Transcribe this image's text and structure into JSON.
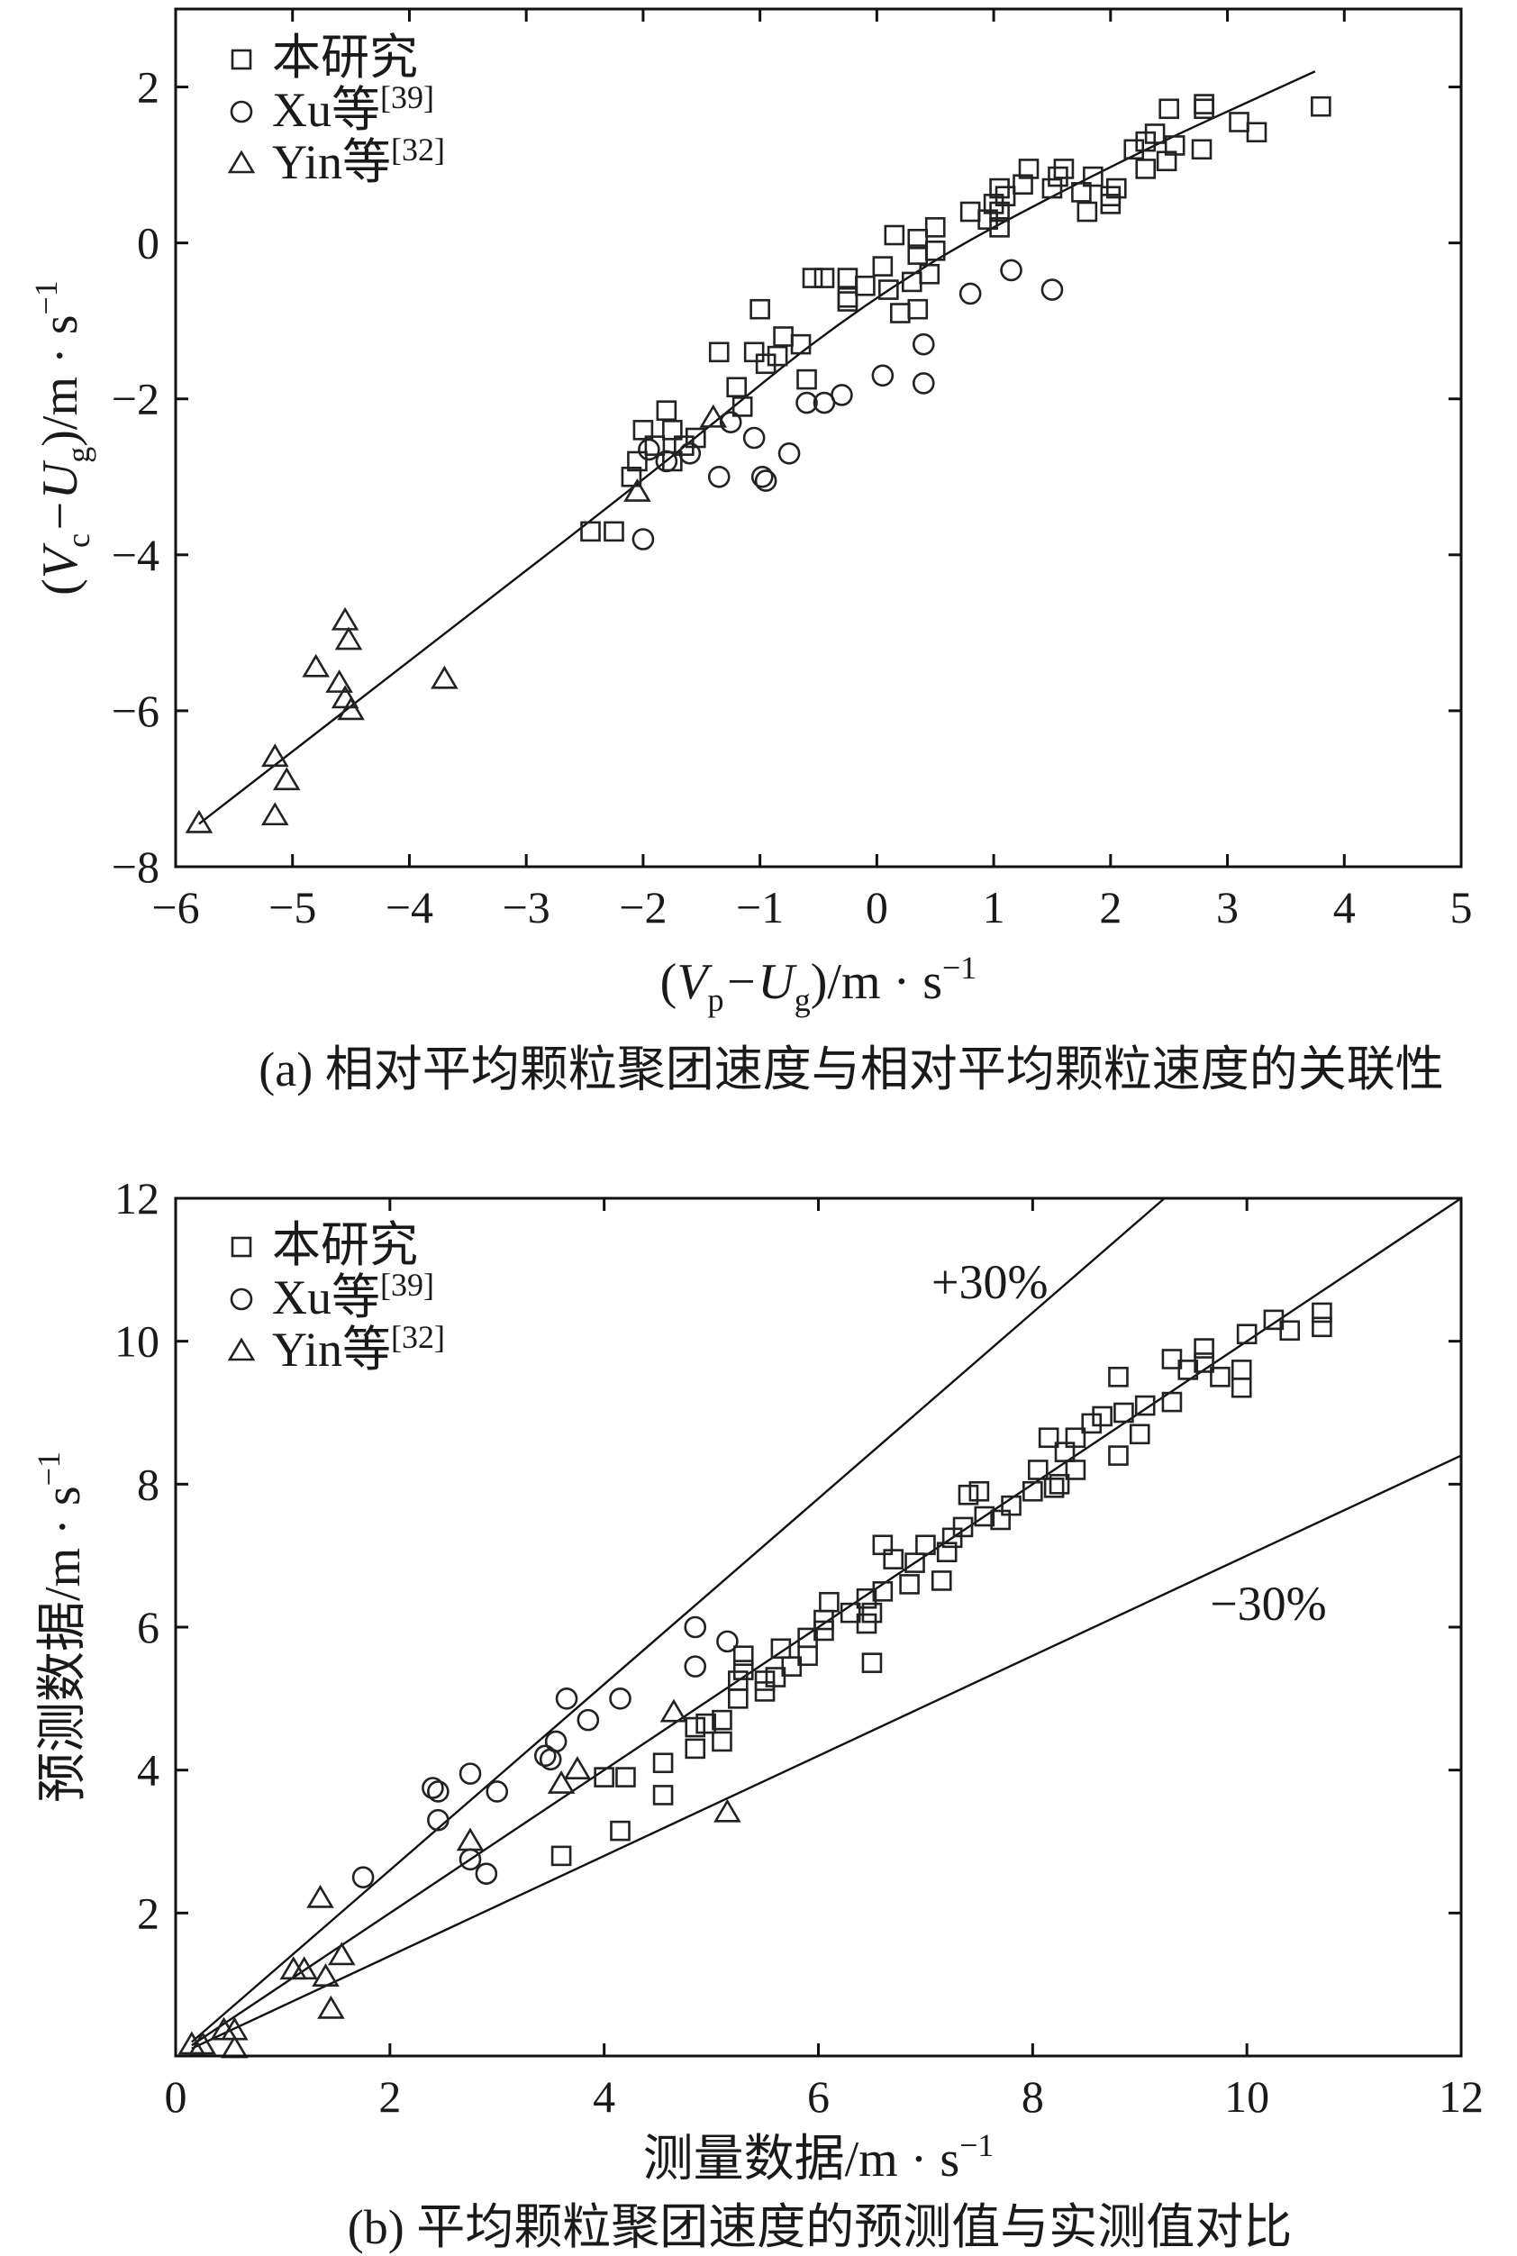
{
  "chart_data": [
    {
      "type": "scatter",
      "panel": "a",
      "caption": "(a) 相对平均颗粒聚团速度与相对平均颗粒速度的关联性",
      "xlabel": {
        "open": "(",
        "var": "V",
        "sub": "p",
        "mid": "−U",
        "sub2": "g",
        "close": ")/m · s",
        "sup": "−1"
      },
      "ylabel": {
        "open": "(",
        "var": "V",
        "sub": "c",
        "mid": "−U",
        "sub2": "g",
        "close": ")/m · s",
        "sup": "−1"
      },
      "xlim": [
        -6,
        5
      ],
      "ylim": [
        -8,
        3
      ],
      "xticks": [
        "−6",
        "−5",
        "−4",
        "−3",
        "−2",
        "−1",
        "0",
        "1",
        "2",
        "3",
        "4",
        "5"
      ],
      "yticks": [
        "−8",
        "−6",
        "−4",
        "−2",
        "0",
        "2"
      ],
      "legend_position": "top-left",
      "series": [
        {
          "name": "本研究",
          "marker": "square",
          "points": [
            [
              3.8,
              1.75
            ],
            [
              3.25,
              1.42
            ],
            [
              3.1,
              1.55
            ],
            [
              2.8,
              1.78
            ],
            [
              2.8,
              1.72
            ],
            [
              2.78,
              1.2
            ],
            [
              2.55,
              1.25
            ],
            [
              2.5,
              1.72
            ],
            [
              2.48,
              1.05
            ],
            [
              2.38,
              1.4
            ],
            [
              2.3,
              1.3
            ],
            [
              2.2,
              1.2
            ],
            [
              2.3,
              0.95
            ],
            [
              2.05,
              0.7
            ],
            [
              2.0,
              0.5
            ],
            [
              2.0,
              0.6
            ],
            [
              1.8,
              0.4
            ],
            [
              1.85,
              0.85
            ],
            [
              1.75,
              0.65
            ],
            [
              1.6,
              0.95
            ],
            [
              1.55,
              0.85
            ],
            [
              1.5,
              0.7
            ],
            [
              1.3,
              0.95
            ],
            [
              1.25,
              0.75
            ],
            [
              1.1,
              0.6
            ],
            [
              1.05,
              0.7
            ],
            [
              1.0,
              0.5
            ],
            [
              1.05,
              0.4
            ],
            [
              1.05,
              0.2
            ],
            [
              0.95,
              0.3
            ],
            [
              0.8,
              0.4
            ],
            [
              0.5,
              0.2
            ],
            [
              0.5,
              -0.1
            ],
            [
              0.45,
              -0.4
            ],
            [
              0.35,
              0.05
            ],
            [
              0.35,
              -0.15
            ],
            [
              0.3,
              -0.5
            ],
            [
              0.35,
              -0.85
            ],
            [
              0.2,
              -0.9
            ],
            [
              0.15,
              0.1
            ],
            [
              0.1,
              -0.6
            ],
            [
              0.05,
              -0.3
            ],
            [
              -0.1,
              -0.55
            ],
            [
              -0.25,
              -0.45
            ],
            [
              -0.25,
              -0.7
            ],
            [
              -0.25,
              -0.75
            ],
            [
              -0.45,
              -0.45
            ],
            [
              -0.55,
              -0.45
            ],
            [
              -0.65,
              -1.3
            ],
            [
              -0.6,
              -1.75
            ],
            [
              -0.8,
              -1.2
            ],
            [
              -0.85,
              -1.45
            ],
            [
              -0.95,
              -1.55
            ],
            [
              -1.0,
              -0.85
            ],
            [
              -1.05,
              -1.4
            ],
            [
              -1.15,
              -2.1
            ],
            [
              -1.2,
              -1.85
            ],
            [
              -1.35,
              -1.4
            ],
            [
              -1.55,
              -2.5
            ],
            [
              -1.65,
              -2.6
            ],
            [
              -1.75,
              -2.4
            ],
            [
              -1.75,
              -2.8
            ],
            [
              -1.8,
              -2.15
            ],
            [
              -1.9,
              -2.6
            ],
            [
              -2.05,
              -2.8
            ],
            [
              -2.1,
              -3.0
            ],
            [
              -2.0,
              -2.4
            ],
            [
              -2.25,
              -3.7
            ],
            [
              -2.45,
              -3.7
            ]
          ]
        },
        {
          "name": "Xu等[39]",
          "marker": "circle",
          "points": [
            [
              1.5,
              -0.6
            ],
            [
              1.15,
              -0.35
            ],
            [
              0.8,
              -0.65
            ],
            [
              0.4,
              -1.3
            ],
            [
              0.4,
              -1.8
            ],
            [
              0.05,
              -1.7
            ],
            [
              -0.3,
              -1.95
            ],
            [
              -0.45,
              -2.05
            ],
            [
              -0.6,
              -2.05
            ],
            [
              -0.75,
              -2.7
            ],
            [
              -0.95,
              -3.05
            ],
            [
              -0.98,
              -3.0
            ],
            [
              -1.05,
              -2.5
            ],
            [
              -1.25,
              -2.3
            ],
            [
              -1.35,
              -3.0
            ],
            [
              -1.6,
              -2.7
            ],
            [
              -1.8,
              -2.8
            ],
            [
              -1.95,
              -2.65
            ],
            [
              -2.0,
              -3.8
            ]
          ]
        },
        {
          "name": "Yin等[32]",
          "marker": "triangle",
          "points": [
            [
              -1.4,
              -2.25
            ],
            [
              -2.05,
              -3.2
            ],
            [
              -3.7,
              -5.6
            ],
            [
              -4.55,
              -4.85
            ],
            [
              -4.52,
              -5.1
            ],
            [
              -4.6,
              -5.65
            ],
            [
              -4.55,
              -5.85
            ],
            [
              -4.5,
              -6.0
            ],
            [
              -4.8,
              -5.45
            ],
            [
              -5.15,
              -6.6
            ],
            [
              -5.05,
              -6.9
            ],
            [
              -5.15,
              -7.35
            ],
            [
              -5.8,
              -7.45
            ]
          ]
        }
      ],
      "fit_line": {
        "x": [
          -5.8,
          -4.0,
          -2.0,
          0.0,
          2.0,
          3.75
        ],
        "y": [
          -7.45,
          -5.35,
          -3.05,
          -0.6,
          1.0,
          2.2
        ]
      }
    },
    {
      "type": "scatter",
      "panel": "b",
      "caption": "(b) 平均颗粒聚团速度的预测值与实测值对比",
      "xlabel": {
        "text": "测量数据/m · s",
        "sup": "−1"
      },
      "ylabel": {
        "text": "预测数据/m · s",
        "sup": "−1"
      },
      "xlim": [
        0,
        12
      ],
      "ylim": [
        0,
        12
      ],
      "xticks": [
        "0",
        "2",
        "4",
        "6",
        "8",
        "10",
        "12"
      ],
      "yticks": [
        "2",
        "4",
        "6",
        "8",
        "10",
        "12"
      ],
      "legend_position": "top-left",
      "reference_lines": [
        {
          "label": "+30%",
          "slope": 1.3
        },
        {
          "label": "",
          "slope": 1.0
        },
        {
          "label": "−30%",
          "slope": 0.7
        }
      ],
      "series": [
        {
          "name": "本研究",
          "marker": "square",
          "points": [
            [
              10.7,
              10.4
            ],
            [
              10.7,
              10.2
            ],
            [
              10.4,
              10.15
            ],
            [
              10.25,
              10.3
            ],
            [
              10.0,
              10.1
            ],
            [
              9.95,
              9.6
            ],
            [
              9.95,
              9.35
            ],
            [
              9.75,
              9.5
            ],
            [
              9.6,
              9.9
            ],
            [
              9.6,
              9.7
            ],
            [
              9.45,
              9.6
            ],
            [
              9.3,
              9.75
            ],
            [
              9.3,
              9.15
            ],
            [
              9.05,
              9.1
            ],
            [
              9.0,
              8.7
            ],
            [
              8.85,
              9.0
            ],
            [
              8.8,
              9.5
            ],
            [
              8.8,
              8.4
            ],
            [
              8.65,
              8.95
            ],
            [
              8.55,
              8.85
            ],
            [
              8.4,
              8.65
            ],
            [
              8.4,
              8.2
            ],
            [
              8.3,
              8.45
            ],
            [
              8.25,
              8.0
            ],
            [
              8.2,
              7.95
            ],
            [
              8.15,
              8.65
            ],
            [
              8.05,
              8.2
            ],
            [
              8.0,
              7.9
            ],
            [
              7.8,
              7.7
            ],
            [
              7.7,
              7.5
            ],
            [
              7.55,
              7.55
            ],
            [
              7.5,
              7.9
            ],
            [
              7.4,
              7.85
            ],
            [
              7.35,
              7.4
            ],
            [
              7.25,
              7.25
            ],
            [
              7.2,
              7.05
            ],
            [
              7.15,
              6.65
            ],
            [
              7.0,
              7.15
            ],
            [
              6.9,
              6.9
            ],
            [
              6.85,
              6.6
            ],
            [
              6.7,
              6.95
            ],
            [
              6.6,
              7.15
            ],
            [
              6.6,
              6.5
            ],
            [
              6.5,
              6.2
            ],
            [
              6.45,
              6.05
            ],
            [
              6.45,
              6.4
            ],
            [
              6.5,
              5.5
            ],
            [
              6.3,
              6.2
            ],
            [
              6.1,
              6.35
            ],
            [
              6.05,
              6.1
            ],
            [
              6.05,
              5.95
            ],
            [
              5.9,
              5.6
            ],
            [
              5.9,
              5.85
            ],
            [
              5.75,
              5.45
            ],
            [
              5.65,
              5.7
            ],
            [
              5.6,
              5.3
            ],
            [
              5.5,
              5.1
            ],
            [
              5.5,
              5.25
            ],
            [
              5.3,
              5.4
            ],
            [
              5.3,
              5.6
            ],
            [
              5.25,
              5.25
            ],
            [
              5.25,
              5.0
            ],
            [
              5.1,
              4.7
            ],
            [
              5.1,
              4.4
            ],
            [
              4.95,
              4.65
            ],
            [
              4.85,
              4.6
            ],
            [
              4.85,
              4.3
            ],
            [
              4.55,
              4.1
            ],
            [
              4.55,
              3.65
            ],
            [
              4.2,
              3.9
            ],
            [
              4.15,
              3.15
            ],
            [
              4.0,
              3.9
            ],
            [
              3.6,
              2.8
            ]
          ]
        },
        {
          "name": "Xu等[39]",
          "marker": "circle",
          "points": [
            [
              1.75,
              2.5
            ],
            [
              2.4,
              3.75
            ],
            [
              2.45,
              3.7
            ],
            [
              2.45,
              3.3
            ],
            [
              2.75,
              3.95
            ],
            [
              2.75,
              2.75
            ],
            [
              2.9,
              2.55
            ],
            [
              3.0,
              3.7
            ],
            [
              3.45,
              4.2
            ],
            [
              3.5,
              4.15
            ],
            [
              3.55,
              4.4
            ],
            [
              3.65,
              5.0
            ],
            [
              3.85,
              4.7
            ],
            [
              4.15,
              5.0
            ],
            [
              4.85,
              6.0
            ],
            [
              4.85,
              5.45
            ],
            [
              5.15,
              5.8
            ]
          ]
        },
        {
          "name": "Yin等[32]",
          "marker": "triangle",
          "points": [
            [
              0.15,
              0.15
            ],
            [
              0.25,
              0.15
            ],
            [
              0.45,
              0.35
            ],
            [
              0.55,
              0.35
            ],
            [
              0.55,
              0.1
            ],
            [
              1.1,
              1.2
            ],
            [
              1.2,
              1.2
            ],
            [
              1.4,
              1.1
            ],
            [
              1.55,
              1.4
            ],
            [
              1.35,
              2.2
            ],
            [
              1.45,
              0.65
            ],
            [
              2.75,
              3.0
            ],
            [
              3.6,
              3.8
            ],
            [
              3.75,
              4.0
            ],
            [
              4.65,
              4.8
            ],
            [
              5.15,
              3.4
            ]
          ]
        }
      ]
    }
  ]
}
